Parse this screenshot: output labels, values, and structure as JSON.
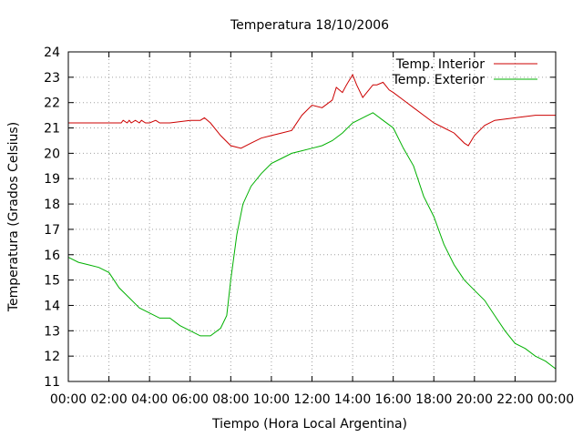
{
  "chart_data": {
    "type": "line",
    "title": "Temperatura 18/10/2006",
    "xlabel": "Tiempo (Hora Local Argentina)",
    "ylabel": "Temperatura (Grados Celsius)",
    "xlim": [
      0,
      24
    ],
    "ylim": [
      11,
      24
    ],
    "x_tick_labels": [
      "00:00",
      "02:00",
      "04:00",
      "06:00",
      "08:00",
      "10:00",
      "12:00",
      "14:00",
      "16:00",
      "18:00",
      "20:00",
      "22:00",
      "00:00"
    ],
    "y_ticks": [
      11,
      12,
      13,
      14,
      15,
      16,
      17,
      18,
      19,
      20,
      21,
      22,
      23,
      24
    ],
    "grid": true,
    "legend_position": "top-right",
    "series": [
      {
        "name": "Temp. Interior",
        "color": "#cc0000",
        "x": [
          0,
          2,
          2.6,
          2.7,
          2.9,
          3.0,
          3.1,
          3.3,
          3.5,
          3.6,
          3.8,
          4.0,
          4.3,
          4.5,
          4.6,
          5.0,
          6.0,
          6.5,
          6.7,
          7.0,
          7.5,
          8.0,
          8.5,
          9.0,
          9.5,
          10.0,
          10.5,
          11.0,
          11.5,
          12.0,
          12.5,
          13.0,
          13.2,
          13.5,
          13.7,
          14.0,
          14.2,
          14.5,
          14.8,
          15.0,
          15.2,
          15.5,
          15.8,
          16.0,
          16.5,
          17.0,
          17.5,
          18.0,
          18.5,
          19.0,
          19.5,
          19.7,
          20.0,
          20.5,
          21.0,
          22.0,
          23.0,
          24.0
        ],
        "y": [
          21.2,
          21.2,
          21.2,
          21.3,
          21.2,
          21.3,
          21.2,
          21.3,
          21.2,
          21.3,
          21.2,
          21.2,
          21.3,
          21.2,
          21.2,
          21.2,
          21.3,
          21.3,
          21.4,
          21.2,
          20.7,
          20.3,
          20.2,
          20.4,
          20.6,
          20.7,
          20.8,
          20.9,
          21.5,
          21.9,
          21.8,
          22.1,
          22.6,
          22.4,
          22.7,
          23.1,
          22.7,
          22.2,
          22.5,
          22.7,
          22.7,
          22.8,
          22.5,
          22.4,
          22.1,
          21.8,
          21.5,
          21.2,
          21.0,
          20.8,
          20.4,
          20.3,
          20.7,
          21.1,
          21.3,
          21.4,
          21.5,
          21.5
        ]
      },
      {
        "name": "Temp. Exterior",
        "color": "#00b000",
        "x": [
          0,
          0.5,
          1.0,
          1.5,
          2.0,
          2.5,
          3.0,
          3.5,
          4.0,
          4.5,
          5.0,
          5.5,
          6.0,
          6.5,
          7.0,
          7.5,
          7.8,
          8.0,
          8.3,
          8.6,
          9.0,
          9.5,
          10.0,
          10.5,
          11.0,
          11.5,
          12.0,
          12.5,
          13.0,
          13.5,
          14.0,
          14.5,
          15.0,
          15.5,
          16.0,
          16.5,
          17.0,
          17.5,
          18.0,
          18.5,
          19.0,
          19.5,
          20.0,
          20.5,
          21.0,
          21.5,
          22.0,
          22.5,
          23.0,
          23.5,
          24.0
        ],
        "y": [
          15.9,
          15.7,
          15.6,
          15.5,
          15.3,
          14.7,
          14.3,
          13.9,
          13.7,
          13.5,
          13.5,
          13.2,
          13.0,
          12.8,
          12.8,
          13.1,
          13.6,
          15.0,
          16.8,
          18.0,
          18.7,
          19.2,
          19.6,
          19.8,
          20.0,
          20.1,
          20.2,
          20.3,
          20.5,
          20.8,
          21.2,
          21.4,
          21.6,
          21.3,
          21.0,
          20.2,
          19.5,
          18.3,
          17.5,
          16.4,
          15.6,
          15.0,
          14.6,
          14.2,
          13.6,
          13.0,
          12.5,
          12.3,
          12.0,
          11.8,
          11.5
        ]
      }
    ]
  }
}
